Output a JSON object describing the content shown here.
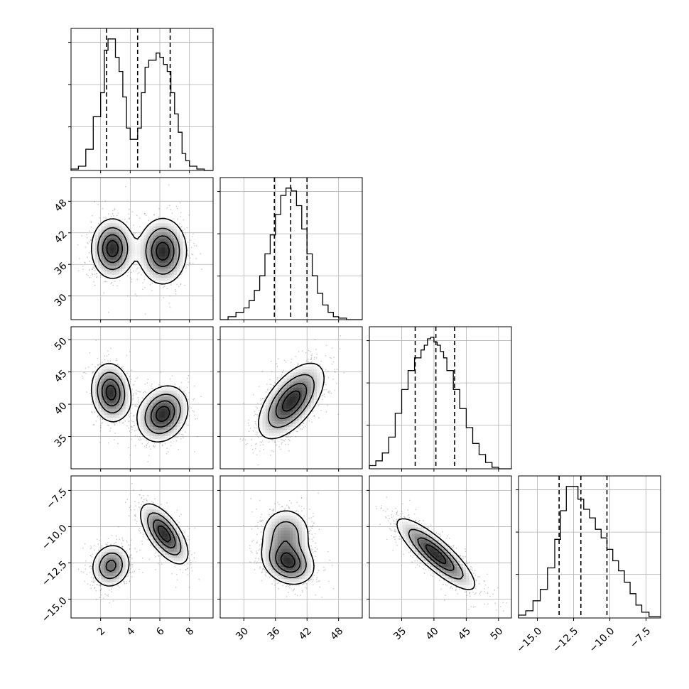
{
  "chart_data": {
    "type": "corner",
    "note_variables": "Four sampled parameters; axis labels are not printed on the figure.",
    "axes_ticks": {
      "p0": [
        "2",
        "4",
        "6",
        "8"
      ],
      "p1": [
        "30",
        "36",
        "42",
        "48"
      ],
      "p2": [
        "35",
        "40",
        "45",
        "50"
      ],
      "p3": [
        "−15.0",
        "−12.5",
        "−10.0",
        "−7.5"
      ]
    },
    "axes_tick_values": {
      "p0": [
        2,
        4,
        6,
        8
      ],
      "p1": [
        30,
        36,
        42,
        48
      ],
      "p2": [
        35,
        40,
        45,
        50
      ],
      "p3": [
        -15.0,
        -12.5,
        -10.0,
        -7.5
      ]
    },
    "axes_ranges": {
      "p0": [
        0.0,
        9.6
      ],
      "p1": [
        25.5,
        52.5
      ],
      "p2": [
        30.0,
        52.0
      ],
      "p3": [
        -16.3,
        -6.5
      ]
    },
    "quantile_lines": {
      "p0": [
        2.4,
        4.5,
        6.7
      ],
      "p1": [
        35.8,
        38.9,
        42.0
      ],
      "p2": [
        37.1,
        40.3,
        43.2
      ],
      "p3": [
        -13.5,
        -12.0,
        -10.2
      ]
    },
    "histograms": [
      {
        "variable": "p0",
        "bins": [
          0.0,
          0.5,
          1.0,
          1.5,
          2.0,
          2.25,
          2.5,
          2.75,
          3.0,
          3.25,
          3.5,
          3.75,
          4.0,
          4.25,
          4.5,
          4.75,
          5.0,
          5.25,
          5.5,
          5.75,
          6.0,
          6.25,
          6.5,
          6.75,
          7.0,
          7.25,
          7.5,
          7.75,
          8.0,
          8.5,
          9.0,
          9.6
        ],
        "counts": [
          0.01,
          0.03,
          0.15,
          0.38,
          0.55,
          0.85,
          0.93,
          0.93,
          0.8,
          0.7,
          0.52,
          0.3,
          0.22,
          0.22,
          0.3,
          0.55,
          0.73,
          0.78,
          0.78,
          0.83,
          0.8,
          0.75,
          0.7,
          0.55,
          0.4,
          0.27,
          0.12,
          0.07,
          0.03,
          0.01,
          0.0
        ]
      },
      {
        "variable": "p1",
        "bins": [
          25.5,
          27.0,
          28.5,
          30.0,
          31.0,
          32.0,
          33.0,
          34.0,
          35.0,
          36.0,
          37.0,
          38.0,
          39.0,
          40.0,
          41.0,
          42.0,
          43.0,
          44.0,
          45.0,
          46.0,
          47.0,
          48.0,
          49.5,
          52.5
        ],
        "counts": [
          0.0,
          0.02,
          0.05,
          0.08,
          0.13,
          0.2,
          0.3,
          0.45,
          0.58,
          0.72,
          0.85,
          0.9,
          0.88,
          0.78,
          0.62,
          0.45,
          0.3,
          0.18,
          0.1,
          0.05,
          0.02,
          0.01,
          0.0
        ]
      },
      {
        "variable": "p2",
        "bins": [
          30.0,
          31.0,
          32.0,
          33.0,
          34.0,
          35.0,
          36.0,
          37.0,
          38.0,
          38.5,
          39.0,
          39.5,
          40.0,
          40.5,
          41.0,
          41.5,
          42.0,
          43.0,
          44.0,
          45.0,
          46.0,
          47.0,
          48.0,
          49.0,
          50.0,
          52.0
        ],
        "counts": [
          0.02,
          0.05,
          0.1,
          0.2,
          0.35,
          0.5,
          0.62,
          0.7,
          0.75,
          0.78,
          0.82,
          0.83,
          0.8,
          0.78,
          0.74,
          0.7,
          0.62,
          0.5,
          0.38,
          0.26,
          0.16,
          0.09,
          0.04,
          0.01,
          0.0
        ]
      },
      {
        "variable": "p3",
        "bins": [
          -16.3,
          -15.8,
          -15.3,
          -14.8,
          -14.3,
          -13.8,
          -13.4,
          -13.0,
          -12.6,
          -12.2,
          -11.8,
          -11.4,
          -11.0,
          -10.6,
          -10.2,
          -9.8,
          -9.4,
          -9.0,
          -8.6,
          -8.2,
          -7.8,
          -7.3,
          -6.5
        ],
        "counts": [
          0.02,
          0.05,
          0.12,
          0.2,
          0.35,
          0.55,
          0.75,
          0.92,
          0.92,
          0.83,
          0.76,
          0.7,
          0.62,
          0.56,
          0.48,
          0.4,
          0.33,
          0.25,
          0.17,
          0.09,
          0.04,
          0.01
        ]
      }
    ],
    "joint_panels": [
      {
        "x": "p0",
        "y": "p1",
        "modes": [
          {
            "mean": [
              2.8,
              39.0
            ],
            "sd": [
              0.75,
              3.0
            ],
            "corr": 0.0,
            "w": 0.5
          },
          {
            "mean": [
              6.2,
              38.5
            ],
            "sd": [
              0.85,
              3.3
            ],
            "corr": 0.0,
            "w": 0.5
          }
        ]
      },
      {
        "x": "p0",
        "y": "p2",
        "modes": [
          {
            "mean": [
              2.7,
              41.8
            ],
            "sd": [
              0.7,
              2.4
            ],
            "corr": -0.1,
            "w": 0.5
          },
          {
            "mean": [
              6.2,
              38.5
            ],
            "sd": [
              0.9,
              2.3
            ],
            "corr": 0.2,
            "w": 0.5
          }
        ]
      },
      {
        "x": "p0",
        "y": "p3",
        "modes": [
          {
            "mean": [
              2.7,
              -12.7
            ],
            "sd": [
              0.7,
              0.8
            ],
            "corr": 0.1,
            "w": 0.5
          },
          {
            "mean": [
              6.3,
              -10.5
            ],
            "sd": [
              0.85,
              1.1
            ],
            "corr": -0.65,
            "w": 0.5
          }
        ]
      },
      {
        "x": "p1",
        "y": "p2",
        "modes": [
          {
            "mean": [
              39.0,
              40.5
            ],
            "sd": [
              3.3,
              3.1
            ],
            "corr": 0.6,
            "w": 1.0
          }
        ]
      },
      {
        "x": "p1",
        "y": "p3",
        "modes": [
          {
            "mean": [
              38.5,
              -12.5
            ],
            "sd": [
              2.6,
              0.8
            ],
            "corr": -0.2,
            "w": 0.6
          },
          {
            "mean": [
              38.0,
              -10.5
            ],
            "sd": [
              2.6,
              1.0
            ],
            "corr": 0.0,
            "w": 0.4
          }
        ]
      },
      {
        "x": "p2",
        "y": "p3",
        "modes": [
          {
            "mean": [
              40.3,
              -11.9
            ],
            "sd": [
              3.2,
              1.3
            ],
            "corr": -0.85,
            "w": 1.0
          }
        ]
      }
    ],
    "contour_levels": 4,
    "grid": true,
    "legend": "none"
  }
}
